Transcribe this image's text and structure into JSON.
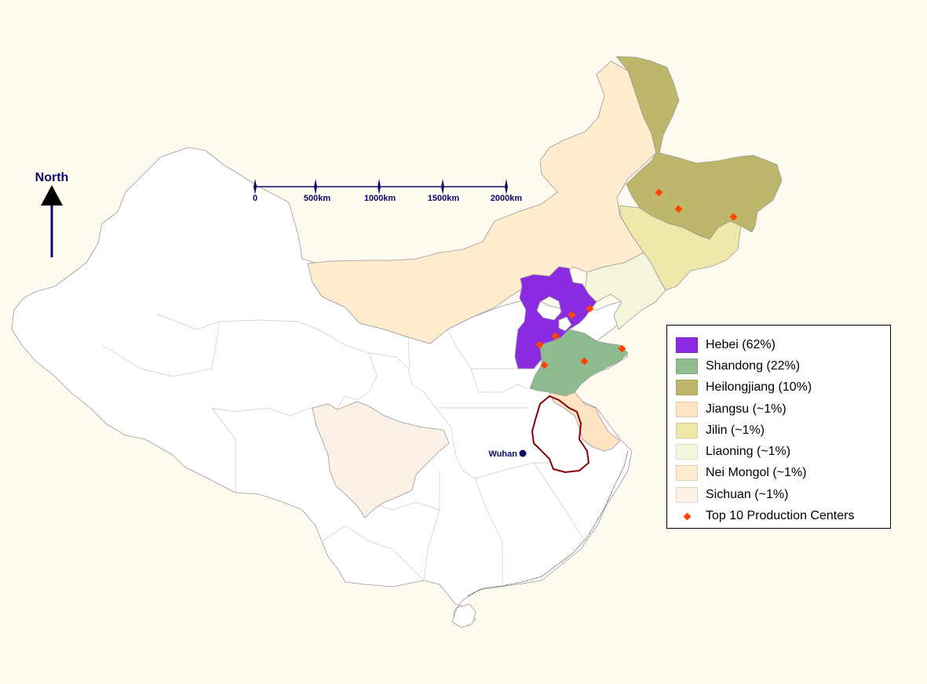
{
  "map": {
    "north_label": "North",
    "scale_bar": {
      "ticks": [
        "0",
        "500km",
        "1000km",
        "1500km",
        "2000km"
      ]
    },
    "city": {
      "name": "Wuhan"
    },
    "marker_color": "#ff4500",
    "highlight_outline_color": "#8b0000",
    "provinces": [
      {
        "name": "Hebei",
        "share": "62%",
        "color": "#8a2be2"
      },
      {
        "name": "Shandong",
        "share": "22%",
        "color": "#8fbc8f"
      },
      {
        "name": "Heilongjiang",
        "share": "10%",
        "color": "#bdb76b"
      },
      {
        "name": "Jiangsu",
        "share": "~1%",
        "color": "#ffe4c4"
      },
      {
        "name": "Jilin",
        "share": "~1%",
        "color": "#eee8aa"
      },
      {
        "name": "Liaoning",
        "share": "~1%",
        "color": "#f5f5dc"
      },
      {
        "name": "Nei Mongol",
        "share": "~1%",
        "color": "#ffebcd"
      },
      {
        "name": "Sichuan",
        "share": "~1%",
        "color": "#faf0e6"
      }
    ]
  },
  "legend": {
    "items": [
      {
        "label": "Hebei (62%)",
        "color": "#8a2be2",
        "type": "swatch"
      },
      {
        "label": "Shandong (22%)",
        "color": "#8fbc8f",
        "type": "swatch"
      },
      {
        "label": "Heilongjiang (10%)",
        "color": "#bdb76b",
        "type": "swatch"
      },
      {
        "label": "Jiangsu (~1%)",
        "color": "#ffe4c4",
        "type": "swatch"
      },
      {
        "label": "Jilin (~1%)",
        "color": "#eee8aa",
        "type": "swatch"
      },
      {
        "label": "Liaoning (~1%)",
        "color": "#f5f5dc",
        "type": "swatch"
      },
      {
        "label": "Nei Mongol (~1%)",
        "color": "#ffebcd",
        "type": "swatch"
      },
      {
        "label": "Sichuan (~1%)",
        "color": "#faf0e6",
        "type": "swatch"
      },
      {
        "label": "Top 10 Production Centers",
        "color": "#ff4500",
        "type": "marker"
      }
    ]
  }
}
